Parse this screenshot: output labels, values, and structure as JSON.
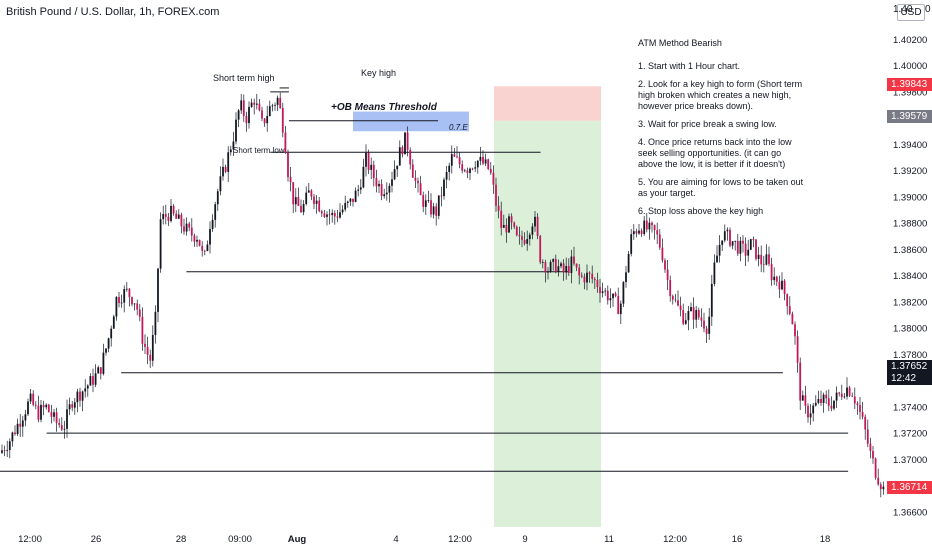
{
  "header": {
    "title": "British Pound / U.S. Dollar, 1h, FOREX.com",
    "currency_button": "USD",
    "top_axis_label": "1.40",
    "top_axis_zero": "0"
  },
  "notes": {
    "title": "ATM Method Bearish",
    "items": [
      "1. Start with 1 Hour chart.",
      "2. Look for a key high to form (Short term high broken which creates a new high, however price breaks down).",
      "3. Wait for price break a swing low.",
      "4. Once price returns back into the low seek selling opportunities. (it can go above the low, it is better if it doesn't)",
      "5. You are aiming for lows to be taken out as your target.",
      "6. Stop loss above the key high"
    ]
  },
  "annotations": {
    "short_term_high": "Short term high",
    "key_high": "Key high",
    "ob_threshold": "+OB Means Threshold",
    "ote": "0.7.E",
    "short_term_low": "Short term low"
  },
  "price_tags": {
    "stop": "1.39843",
    "entry": "1.39579",
    "current": "1.37652",
    "countdown": "12:42",
    "last": "1.36714"
  },
  "colors": {
    "candle": "#131722",
    "up_candle": "#131722",
    "down_candle": "#c2185b",
    "stop_zone": "#f8d3d0",
    "target_zone": "#dbefd9",
    "ob_zone": "#a9c0f5",
    "stop_tag": "#f23645",
    "entry_tag": "#787b86",
    "current_tag": "#131722"
  },
  "chart_data": {
    "type": "candlestick",
    "title": "British Pound / U.S. Dollar, 1h, FOREX.com",
    "ylim": [
      1.365,
      1.405
    ],
    "y_ticks": [
      "1.40200",
      "1.40000",
      "1.39800",
      "1.39600",
      "1.39400",
      "1.39200",
      "1.39000",
      "1.38800",
      "1.38600",
      "1.38400",
      "1.38200",
      "1.38000",
      "1.37800",
      "1.37600",
      "1.37400",
      "1.37200",
      "1.37000",
      "1.36800",
      "1.36600"
    ],
    "x_ticks": [
      "12:00",
      "26",
      "28",
      "09:00",
      "Aug",
      "4",
      "12:00",
      "9",
      "11",
      "12:00",
      "16",
      "18"
    ],
    "close_path": [
      [
        0,
        1.3705
      ],
      [
        10,
        1.3715
      ],
      [
        20,
        1.373
      ],
      [
        30,
        1.3745
      ],
      [
        38,
        1.3735
      ],
      [
        46,
        1.374
      ],
      [
        56,
        1.3728
      ],
      [
        64,
        1.3725
      ],
      [
        72,
        1.3745
      ],
      [
        82,
        1.3752
      ],
      [
        92,
        1.376
      ],
      [
        100,
        1.3768
      ],
      [
        108,
        1.379
      ],
      [
        116,
        1.3822
      ],
      [
        126,
        1.3828
      ],
      [
        136,
        1.382
      ],
      [
        143,
        1.379
      ],
      [
        150,
        1.3775
      ],
      [
        156,
        1.381
      ],
      [
        160,
        1.3882
      ],
      [
        170,
        1.3888
      ],
      [
        180,
        1.388
      ],
      [
        190,
        1.3872
      ],
      [
        198,
        1.387
      ],
      [
        204,
        1.385
      ],
      [
        210,
        1.388
      ],
      [
        218,
        1.3905
      ],
      [
        226,
        1.3925
      ],
      [
        234,
        1.3948
      ],
      [
        240,
        1.397
      ],
      [
        246,
        1.396
      ],
      [
        254,
        1.3975
      ],
      [
        262,
        1.3955
      ],
      [
        270,
        1.3968
      ],
      [
        278,
        1.3975
      ],
      [
        284,
        1.395
      ],
      [
        288,
        1.392
      ],
      [
        294,
        1.3895
      ],
      [
        302,
        1.389
      ],
      [
        310,
        1.3905
      ],
      [
        318,
        1.3895
      ],
      [
        326,
        1.3888
      ],
      [
        334,
        1.3885
      ],
      [
        342,
        1.389
      ],
      [
        350,
        1.3895
      ],
      [
        358,
        1.3905
      ],
      [
        366,
        1.3928
      ],
      [
        374,
        1.3915
      ],
      [
        382,
        1.3905
      ],
      [
        390,
        1.3912
      ],
      [
        398,
        1.393
      ],
      [
        406,
        1.3945
      ],
      [
        414,
        1.3915
      ],
      [
        420,
        1.39
      ],
      [
        428,
        1.3892
      ],
      [
        436,
        1.3888
      ],
      [
        444,
        1.391
      ],
      [
        452,
        1.393
      ],
      [
        460,
        1.3925
      ],
      [
        468,
        1.3922
      ],
      [
        476,
        1.3928
      ],
      [
        484,
        1.3925
      ],
      [
        490,
        1.392
      ],
      [
        496,
        1.3895
      ],
      [
        502,
        1.3875
      ],
      [
        510,
        1.388
      ],
      [
        518,
        1.3865
      ],
      [
        526,
        1.387
      ],
      [
        534,
        1.3885
      ],
      [
        540,
        1.3855
      ],
      [
        548,
        1.3845
      ],
      [
        556,
        1.3848
      ],
      [
        564,
        1.3842
      ],
      [
        572,
        1.385
      ],
      [
        580,
        1.3838
      ],
      [
        588,
        1.384
      ],
      [
        596,
        1.3835
      ],
      [
        604,
        1.3828
      ],
      [
        612,
        1.3822
      ],
      [
        620,
        1.3815
      ],
      [
        626,
        1.3845
      ],
      [
        632,
        1.3872
      ],
      [
        640,
        1.3878
      ],
      [
        648,
        1.3875
      ],
      [
        656,
        1.3872
      ],
      [
        662,
        1.3858
      ],
      [
        668,
        1.3835
      ],
      [
        676,
        1.3818
      ],
      [
        684,
        1.3808
      ],
      [
        692,
        1.3812
      ],
      [
        700,
        1.3808
      ],
      [
        708,
        1.38
      ],
      [
        714,
        1.3845
      ],
      [
        722,
        1.3872
      ],
      [
        730,
        1.3868
      ],
      [
        738,
        1.3862
      ],
      [
        746,
        1.3858
      ],
      [
        752,
        1.3865
      ],
      [
        760,
        1.385
      ],
      [
        766,
        1.3852
      ],
      [
        772,
        1.384
      ],
      [
        780,
        1.3835
      ],
      [
        788,
        1.382
      ],
      [
        794,
        1.38
      ],
      [
        800,
        1.375
      ],
      [
        806,
        1.3735
      ],
      [
        814,
        1.374
      ],
      [
        822,
        1.3745
      ],
      [
        830,
        1.3742
      ],
      [
        838,
        1.3748
      ],
      [
        846,
        1.3755
      ],
      [
        852,
        1.3752
      ],
      [
        858,
        1.374
      ],
      [
        864,
        1.3725
      ],
      [
        870,
        1.3705
      ],
      [
        876,
        1.369
      ],
      [
        882,
        1.368
      ],
      [
        886,
        1.3672
      ]
    ],
    "levels": [
      {
        "name": "short-term-high",
        "price": 1.398,
        "x0": 0.29,
        "x1": 0.31
      },
      {
        "name": "key-high",
        "price": 1.3983,
        "x0": 0.3,
        "x1": 0.31
      },
      {
        "name": "threshold",
        "price": 1.3958,
        "x0": 0.31,
        "x1": 0.47
      },
      {
        "name": "short-term-low",
        "price": 1.3934,
        "x0": 0.29,
        "x1": 0.58
      },
      {
        "name": "swing-low-1",
        "price": 1.3843,
        "x0": 0.2,
        "x1": 0.61
      },
      {
        "name": "swing-low-2",
        "price": 1.3766,
        "x0": 0.13,
        "x1": 0.84
      },
      {
        "name": "swing-low-3",
        "price": 1.372,
        "x0": 0.05,
        "x1": 0.91
      },
      {
        "name": "swing-low-4",
        "price": 1.3691,
        "x0": 0.0,
        "x1": 0.91
      }
    ],
    "zones": {
      "ob": {
        "low": 1.395,
        "high": 1.3965
      },
      "stop": {
        "low": 1.39579,
        "high": 1.39843
      },
      "target": {
        "low": 1.365,
        "high": 1.39579
      }
    }
  }
}
